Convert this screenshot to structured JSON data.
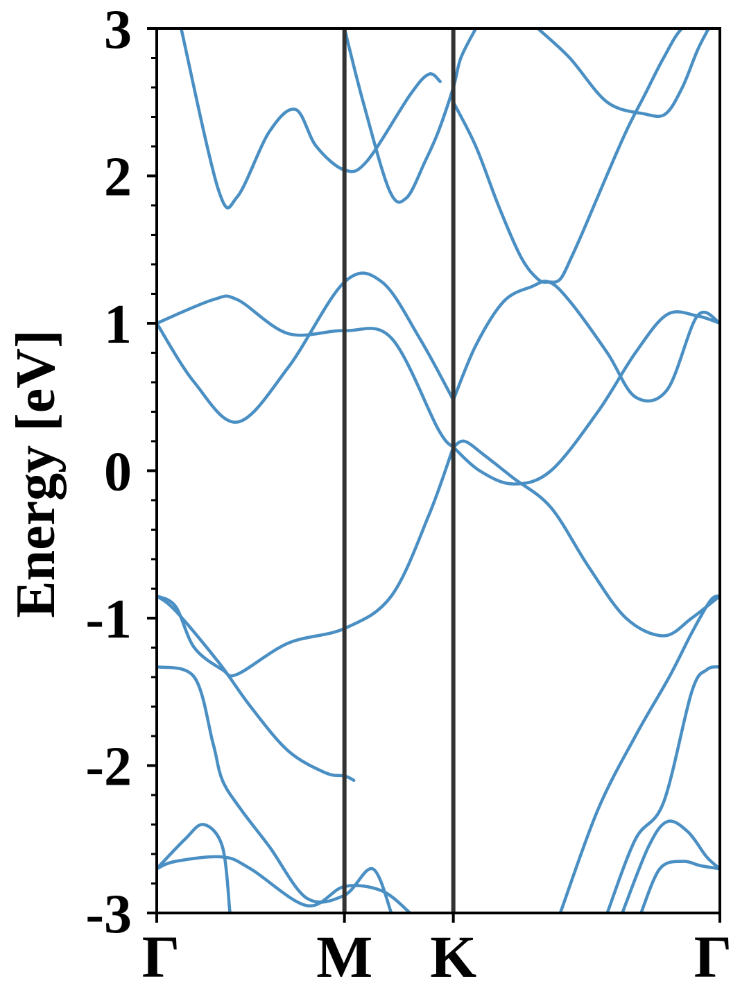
{
  "chart_data": {
    "type": "line",
    "title": "",
    "xlabel": "",
    "ylabel": "Energy [eV]",
    "ylim": [
      -3,
      3
    ],
    "xlim": [
      0,
      3
    ],
    "grid": false,
    "legend": "none",
    "colors": {
      "band": "#4a8fc3",
      "kline": "#333333",
      "axis": "#000000"
    },
    "yticks": [
      {
        "value": 3,
        "label": "3"
      },
      {
        "value": 2,
        "label": "2"
      },
      {
        "value": 1,
        "label": "1"
      },
      {
        "value": 0,
        "label": "0"
      },
      {
        "value": -1,
        "label": "-1"
      },
      {
        "value": -2,
        "label": "-2"
      },
      {
        "value": -3,
        "label": "-3"
      }
    ],
    "yminor_step": 0.2,
    "xticks": [
      {
        "value": 0,
        "label": "Γ"
      },
      {
        "value": 1,
        "label": "M"
      },
      {
        "value": 1.58,
        "label": "K"
      },
      {
        "value": 3,
        "label": "Γ"
      }
    ],
    "vlines": [
      1,
      1.58
    ],
    "series": [
      {
        "x": [
          0.13,
          0.33,
          0.43,
          0.6,
          0.74,
          0.85,
          1,
          1.12,
          1.35,
          1.45,
          1.51
        ],
        "y": [
          3.0,
          1.9,
          1.86,
          2.3,
          2.45,
          2.2,
          2.04,
          2.1,
          2.55,
          2.69,
          2.64
        ]
      },
      {
        "x": [
          1,
          1.1,
          1.24,
          1.33,
          1.43,
          1.5,
          1.58,
          1.62,
          1.7
        ],
        "y": [
          3.0,
          2.5,
          1.9,
          1.85,
          2.1,
          2.3,
          2.6,
          2.8,
          3.0
        ]
      },
      {
        "x": [
          1.58,
          1.7,
          1.82,
          1.94,
          2.03,
          2.09,
          2.15,
          2.21,
          2.28,
          2.38,
          2.5,
          2.6,
          2.7,
          2.8,
          2.9,
          2.95
        ],
        "y": [
          2.5,
          2.2,
          1.8,
          1.45,
          1.3,
          1.28,
          1.3,
          1.45,
          1.65,
          1.95,
          2.3,
          2.55,
          2.8,
          3.0,
          3.0,
          3.0
        ]
      },
      {
        "x": [
          2.03,
          2.2,
          2.4,
          2.6,
          2.71,
          2.8,
          2.88,
          2.94
        ],
        "y": [
          3.0,
          2.8,
          2.5,
          2.42,
          2.42,
          2.6,
          2.85,
          3.0
        ]
      },
      {
        "x": [
          0,
          0.3,
          0.43,
          0.7,
          1,
          1.25,
          1.5,
          1.58
        ],
        "y": [
          1.0,
          1.16,
          1.16,
          0.93,
          0.95,
          0.9,
          0.28,
          0.16
        ]
      },
      {
        "x": [
          0,
          0.2,
          0.43,
          0.7,
          1,
          1.2,
          1.4,
          1.58
        ],
        "y": [
          1.0,
          0.6,
          0.33,
          0.7,
          1.28,
          1.28,
          0.9,
          0.48
        ]
      },
      {
        "x": [
          1.58,
          1.7,
          1.85,
          2.0,
          2.09,
          2.2,
          2.4,
          2.55,
          2.72,
          2.88,
          3
        ],
        "y": [
          0.48,
          0.85,
          1.15,
          1.25,
          1.28,
          1.15,
          0.8,
          0.5,
          0.55,
          1.05,
          1.0
        ]
      },
      {
        "x": [
          1.58,
          1.72,
          1.9,
          2.1,
          2.35,
          2.55,
          2.72,
          2.88,
          3
        ],
        "y": [
          0.16,
          0.0,
          -0.09,
          0.0,
          0.4,
          0.8,
          1.06,
          1.05,
          1.0
        ]
      },
      {
        "x": [
          0,
          0.1,
          0.2,
          0.35,
          0.43,
          0.7,
          1,
          1.25,
          1.45,
          1.58
        ],
        "y": [
          -0.85,
          -0.92,
          -1.2,
          -1.35,
          -1.38,
          -1.17,
          -1.07,
          -0.85,
          -0.3,
          0.16
        ]
      },
      {
        "x": [
          1.58,
          1.64,
          1.75,
          1.9,
          2.1,
          2.3,
          2.5,
          2.7,
          2.85,
          3
        ],
        "y": [
          0.16,
          0.2,
          0.1,
          -0.05,
          -0.25,
          -0.65,
          -1.0,
          -1.12,
          -1.0,
          -0.85
        ]
      },
      {
        "x": [
          0,
          0.1,
          0.33,
          0.5,
          0.7,
          0.9,
          1,
          1.05
        ],
        "y": [
          -0.85,
          -0.95,
          -1.3,
          -1.6,
          -1.9,
          -2.05,
          -2.07,
          -2.1
        ]
      },
      {
        "x": [
          0,
          0.2,
          0.3,
          0.35,
          0.45,
          0.6,
          0.8,
          1,
          1.15,
          1.25
        ],
        "y": [
          -1.33,
          -1.4,
          -1.85,
          -2.1,
          -2.3,
          -2.55,
          -2.9,
          -2.88,
          -2.7,
          -3.0
        ]
      },
      {
        "x": [
          0,
          0.15,
          0.25,
          0.35,
          0.39
        ],
        "y": [
          -2.7,
          -2.5,
          -2.4,
          -2.55,
          -3.0
        ]
      },
      {
        "x": [
          0,
          0.1,
          0.35,
          0.5,
          0.8,
          1,
          1.2,
          1.35
        ],
        "y": [
          -2.7,
          -2.65,
          -2.62,
          -2.7,
          -2.95,
          -2.82,
          -2.85,
          -3.0
        ]
      },
      {
        "x": [
          2.15,
          2.35,
          2.55,
          2.73,
          2.85,
          2.95,
          3
        ],
        "y": [
          -3.0,
          -2.3,
          -1.8,
          -1.4,
          -1.1,
          -0.88,
          -0.85
        ]
      },
      {
        "x": [
          2.4,
          2.55,
          2.7,
          2.85,
          2.93,
          3
        ],
        "y": [
          -3.0,
          -2.5,
          -2.25,
          -1.5,
          -1.35,
          -1.33
        ]
      },
      {
        "x": [
          2.48,
          2.62,
          2.72,
          2.83,
          2.93,
          3
        ],
        "y": [
          -3.0,
          -2.55,
          -2.38,
          -2.45,
          -2.62,
          -2.7
        ]
      },
      {
        "x": [
          2.58,
          2.68,
          2.8,
          2.9,
          3
        ],
        "y": [
          -3.0,
          -2.7,
          -2.65,
          -2.68,
          -2.7
        ]
      }
    ]
  }
}
